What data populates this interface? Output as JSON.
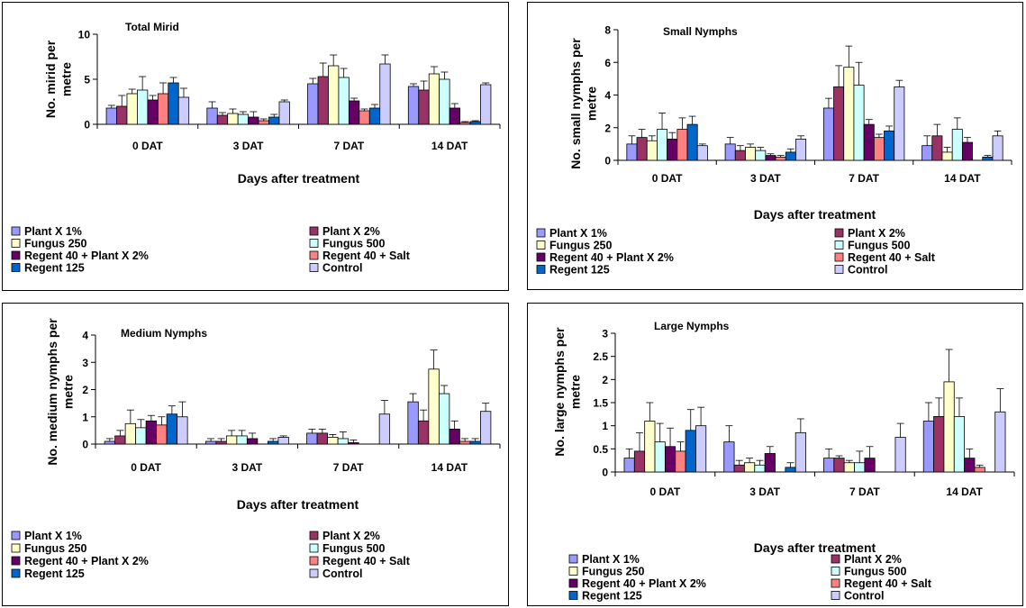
{
  "legend": {
    "items": [
      {
        "label": "Plant X 1%",
        "color": "#9999FF"
      },
      {
        "label": "Plant X 2%",
        "color": "#993366"
      },
      {
        "label": "Fungus 250",
        "color": "#FFFFCC"
      },
      {
        "label": "Fungus 500",
        "color": "#CCFFFF"
      },
      {
        "label": "Regent 40 + Plant X 2%",
        "color": "#660066"
      },
      {
        "label": "Regent 40 + Salt",
        "color": "#FF8080"
      },
      {
        "label": "Regent 125",
        "color": "#0066CC"
      },
      {
        "label": "Control",
        "color": "#CCCCFF"
      }
    ]
  },
  "chart_data": [
    {
      "type": "bar",
      "title": "Total Mirid",
      "xlabel": "Days after treatment",
      "ylabel": "No. mirid per metre",
      "ylim": [
        0,
        10
      ],
      "yticks": [
        "0",
        "5",
        "10"
      ],
      "categories": [
        "0 DAT",
        "3 DAT",
        "7 DAT",
        "14 DAT"
      ],
      "legend_position": "bottom",
      "error_bars": true,
      "series": [
        {
          "name": "Plant X 1%",
          "values": [
            1.8,
            1.8,
            4.5,
            4.2
          ],
          "errors": [
            0.3,
            0.7,
            0.6,
            0.3
          ]
        },
        {
          "name": "Plant X 2%",
          "values": [
            2.0,
            1.0,
            5.3,
            3.8
          ],
          "errors": [
            1.2,
            0.3,
            1.5,
            1.0
          ]
        },
        {
          "name": "Fungus 250",
          "values": [
            3.4,
            1.2,
            6.5,
            5.6
          ],
          "errors": [
            0.5,
            0.5,
            1.2,
            0.8
          ]
        },
        {
          "name": "Fungus 500",
          "values": [
            3.8,
            1.1,
            5.2,
            5.0
          ],
          "errors": [
            1.5,
            0.3,
            1.0,
            0.8
          ]
        },
        {
          "name": "Regent 40 + Plant X 2%",
          "values": [
            2.7,
            0.8,
            2.6,
            1.8
          ],
          "errors": [
            0.5,
            0.6,
            0.3,
            0.5
          ]
        },
        {
          "name": "Regent 40 + Salt",
          "values": [
            3.4,
            0.4,
            1.5,
            0.2
          ],
          "errors": [
            1.2,
            0.2,
            0.2,
            0.1
          ]
        },
        {
          "name": "Regent 125",
          "values": [
            4.6,
            0.8,
            1.8,
            0.3
          ],
          "errors": [
            0.6,
            0.3,
            0.4,
            0.1
          ]
        },
        {
          "name": "Control",
          "values": [
            3.0,
            2.5,
            6.7,
            4.4
          ],
          "errors": [
            1.0,
            0.2,
            1.0,
            0.2
          ]
        }
      ]
    },
    {
      "type": "bar",
      "title": "Small Nymphs",
      "xlabel": "Days after treatment",
      "ylabel": "No. small nymphs per metre",
      "ylim": [
        0,
        8
      ],
      "yticks": [
        "0",
        "2",
        "4",
        "6",
        "8"
      ],
      "categories": [
        "0 DAT",
        "3 DAT",
        "7 DAT",
        "14 DAT"
      ],
      "legend_position": "bottom",
      "error_bars": true,
      "series": [
        {
          "name": "Plant X 1%",
          "values": [
            1.0,
            1.0,
            3.2,
            0.9
          ],
          "errors": [
            0.5,
            0.4,
            0.6,
            0.6
          ]
        },
        {
          "name": "Plant X 2%",
          "values": [
            1.4,
            0.6,
            4.5,
            1.5
          ],
          "errors": [
            0.5,
            0.3,
            1.3,
            0.7
          ]
        },
        {
          "name": "Fungus 250",
          "values": [
            1.2,
            0.8,
            5.7,
            0.5
          ],
          "errors": [
            0.3,
            0.2,
            1.3,
            0.3
          ]
        },
        {
          "name": "Fungus 500",
          "values": [
            1.9,
            0.6,
            4.6,
            1.9
          ],
          "errors": [
            1.0,
            0.2,
            1.4,
            0.7
          ]
        },
        {
          "name": "Regent 40 + Plant X 2%",
          "values": [
            1.3,
            0.3,
            2.2,
            1.1
          ],
          "errors": [
            0.4,
            0.1,
            0.3,
            0.3
          ]
        },
        {
          "name": "Regent 40 + Salt",
          "values": [
            1.9,
            0.2,
            1.4,
            0.0
          ],
          "errors": [
            0.7,
            0.1,
            0.2,
            0.0
          ]
        },
        {
          "name": "Regent 125",
          "values": [
            2.2,
            0.5,
            1.8,
            0.2
          ],
          "errors": [
            0.5,
            0.2,
            0.3,
            0.1
          ]
        },
        {
          "name": "Control",
          "values": [
            0.9,
            1.3,
            4.5,
            1.5
          ],
          "errors": [
            0.1,
            0.2,
            0.4,
            0.3
          ]
        }
      ]
    },
    {
      "type": "bar",
      "title": "Medium Nymphs",
      "xlabel": "Days after treatment",
      "ylabel": "No. medium nymphs per metre",
      "ylim": [
        0,
        4
      ],
      "yticks": [
        "0",
        "1",
        "2",
        "3",
        "4"
      ],
      "categories": [
        "0 DAT",
        "3 DAT",
        "7 DAT",
        "14 DAT"
      ],
      "legend_position": "bottom",
      "error_bars": true,
      "series": [
        {
          "name": "Plant X 1%",
          "values": [
            0.1,
            0.1,
            0.4,
            1.55
          ],
          "errors": [
            0.1,
            0.1,
            0.15,
            0.3
          ]
        },
        {
          "name": "Plant X 2%",
          "values": [
            0.3,
            0.1,
            0.4,
            0.85
          ],
          "errors": [
            0.2,
            0.1,
            0.15,
            0.4
          ]
        },
        {
          "name": "Fungus 250",
          "values": [
            0.75,
            0.3,
            0.25,
            2.75
          ],
          "errors": [
            0.5,
            0.2,
            0.1,
            0.7
          ]
        },
        {
          "name": "Fungus 500",
          "values": [
            0.6,
            0.3,
            0.2,
            1.85
          ],
          "errors": [
            0.3,
            0.2,
            0.25,
            0.3
          ]
        },
        {
          "name": "Regent 40 + Plant X 2%",
          "values": [
            0.85,
            0.2,
            0.05,
            0.55
          ],
          "errors": [
            0.2,
            0.2,
            0.1,
            0.3
          ]
        },
        {
          "name": "Regent 40 + Salt",
          "values": [
            0.7,
            0.0,
            0.0,
            0.1
          ],
          "errors": [
            0.3,
            0.0,
            0.0,
            0.1
          ]
        },
        {
          "name": "Regent 125",
          "values": [
            1.1,
            0.1,
            0.0,
            0.1
          ],
          "errors": [
            0.3,
            0.1,
            0.0,
            0.1
          ]
        },
        {
          "name": "Control",
          "values": [
            1.0,
            0.25,
            1.1,
            1.2
          ],
          "errors": [
            0.55,
            0.05,
            0.5,
            0.3
          ]
        }
      ]
    },
    {
      "type": "bar",
      "title": "Large Nymphs",
      "xlabel": "Days after treatment",
      "ylabel": "No. large nymphs per metre",
      "ylim": [
        0,
        3
      ],
      "yticks": [
        "0",
        "0.5",
        "1",
        "1.5",
        "2",
        "2.5",
        "3"
      ],
      "categories": [
        "0 DAT",
        "3 DAT",
        "7 DAT",
        "14 DAT"
      ],
      "legend_position": "bottom",
      "error_bars": true,
      "series": [
        {
          "name": "Plant X 1%",
          "values": [
            0.3,
            0.65,
            0.3,
            1.1
          ],
          "errors": [
            0.2,
            0.35,
            0.2,
            0.4
          ]
        },
        {
          "name": "Plant X 2%",
          "values": [
            0.45,
            0.15,
            0.3,
            1.2
          ],
          "errors": [
            0.4,
            0.1,
            0.05,
            0.4
          ]
        },
        {
          "name": "Fungus 250",
          "values": [
            1.1,
            0.2,
            0.2,
            1.95
          ],
          "errors": [
            0.4,
            0.1,
            0.05,
            0.7
          ]
        },
        {
          "name": "Fungus 500",
          "values": [
            0.65,
            0.15,
            0.2,
            1.2
          ],
          "errors": [
            0.4,
            0.1,
            0.25,
            0.4
          ]
        },
        {
          "name": "Regent 40 + Plant X 2%",
          "values": [
            0.55,
            0.4,
            0.3,
            0.3
          ],
          "errors": [
            0.4,
            0.15,
            0.25,
            0.2
          ]
        },
        {
          "name": "Regent 40 + Salt",
          "values": [
            0.45,
            0.0,
            0.0,
            0.1
          ],
          "errors": [
            0.2,
            0.0,
            0.0,
            0.05
          ]
        },
        {
          "name": "Regent 125",
          "values": [
            0.9,
            0.1,
            0.0,
            0.0
          ],
          "errors": [
            0.45,
            0.1,
            0.0,
            0.0
          ]
        },
        {
          "name": "Control",
          "values": [
            1.0,
            0.85,
            0.75,
            1.3
          ],
          "errors": [
            0.4,
            0.3,
            0.3,
            0.5
          ]
        }
      ]
    }
  ]
}
